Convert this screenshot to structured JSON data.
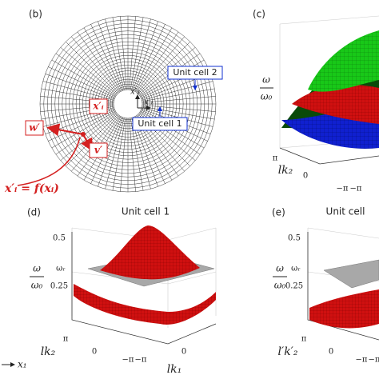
{
  "panel_b": {
    "label": "(b)",
    "unit_cell_1": "Unit cell 1",
    "unit_cell_2": "Unit cell 2",
    "axis_x1": "x′₁",
    "axis_x2": "x′₂",
    "point_label": "x′ᵢ",
    "vector_w": "w′",
    "vector_v": "v′",
    "mapping": "x′ᵢ = f(xᵢ)"
  },
  "panel_c": {
    "label": "(c)",
    "y_label_num": "ω",
    "y_label_den": "ω₀",
    "x_label": "lk₂",
    "ticks": [
      "π",
      "0",
      "−π",
      "−π"
    ]
  },
  "panel_d": {
    "label": "(d)",
    "title": "Unit cell 1",
    "z_ticks": [
      "0.5",
      "ωᵣ",
      "0.25"
    ],
    "y_label_num": "ω",
    "y_label_den": "ω₀",
    "k2_label": "lk₂",
    "k2_ticks": [
      "π",
      "0",
      "−π"
    ],
    "k1_label": "lk₁",
    "k1_ticks": [
      "−π",
      "0"
    ]
  },
  "panel_e": {
    "label": "(e)",
    "title": "Unit cell",
    "z_ticks": [
      "0.5",
      "ωᵣ",
      "0.25"
    ],
    "y_label_num": "ω",
    "y_label_den": "ω₀",
    "k2_label": "l′k′₂",
    "k2_ticks": [
      "π",
      "0",
      "−π",
      "−π"
    ]
  },
  "axis_hint": "x₁"
}
